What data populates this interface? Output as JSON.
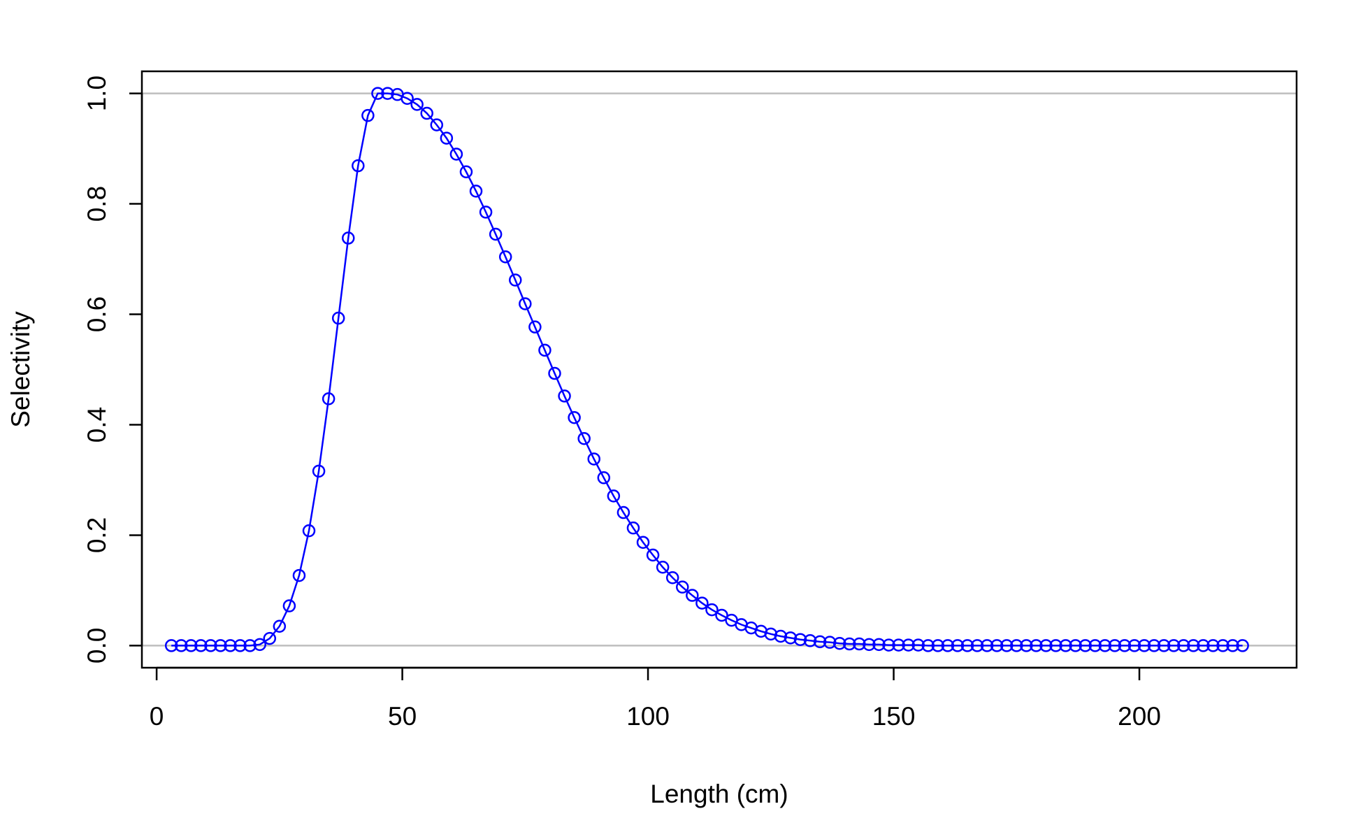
{
  "chart_data": {
    "type": "line",
    "title": "",
    "xlabel": "Length (cm)",
    "ylabel": "Selectivity",
    "xlim": [
      -3,
      232
    ],
    "ylim": [
      -0.04,
      1.04
    ],
    "x_ticks": [
      0,
      50,
      100,
      150,
      200
    ],
    "y_ticks": [
      0.0,
      0.2,
      0.4,
      0.6,
      0.8,
      1.0
    ],
    "x_tick_labels": [
      "0",
      "50",
      "100",
      "150",
      "200"
    ],
    "y_tick_labels": [
      "0.0",
      "0.2",
      "0.4",
      "0.6",
      "0.8",
      "1.0"
    ],
    "reference_lines": [
      0,
      1
    ],
    "reference_line_color": "#bebebe",
    "series_color": "#0000ff",
    "markers": "open-circle",
    "legend": "none",
    "grid": false,
    "x": [
      3,
      5,
      7,
      9,
      11,
      13,
      15,
      17,
      19,
      21,
      23,
      25,
      27,
      29,
      31,
      33,
      35,
      37,
      39,
      41,
      43,
      45,
      47,
      49,
      51,
      53,
      55,
      57,
      59,
      61,
      63,
      65,
      67,
      69,
      71,
      73,
      75,
      77,
      79,
      81,
      83,
      85,
      87,
      89,
      91,
      93,
      95,
      97,
      99,
      101,
      103,
      105,
      107,
      109,
      111,
      113,
      115,
      117,
      119,
      121,
      123,
      125,
      127,
      129,
      131,
      133,
      135,
      137,
      139,
      141,
      143,
      145,
      147,
      149,
      151,
      153,
      155,
      157,
      159,
      161,
      163,
      165,
      167,
      169,
      171,
      173,
      175,
      177,
      179,
      181,
      183,
      185,
      187,
      189,
      191,
      193,
      195,
      197,
      199,
      201,
      203,
      205,
      207,
      209,
      211,
      213,
      215,
      217,
      219,
      221
    ],
    "y": [
      0,
      0,
      0,
      0,
      0,
      0,
      0,
      0,
      0,
      0.002,
      0.013,
      0.035,
      0.072,
      0.127,
      0.208,
      0.316,
      0.447,
      0.593,
      0.738,
      0.869,
      0.96,
      1.0,
      1.0,
      0.998,
      0.991,
      0.98,
      0.964,
      0.943,
      0.919,
      0.89,
      0.858,
      0.823,
      0.785,
      0.745,
      0.704,
      0.662,
      0.619,
      0.577,
      0.535,
      0.493,
      0.452,
      0.413,
      0.375,
      0.338,
      0.304,
      0.271,
      0.241,
      0.213,
      0.187,
      0.164,
      0.142,
      0.123,
      0.106,
      0.091,
      0.077,
      0.065,
      0.055,
      0.046,
      0.038,
      0.032,
      0.026,
      0.021,
      0.017,
      0.014,
      0.011,
      0.009,
      0.007,
      0.006,
      0.004,
      0.003,
      0.003,
      0.002,
      0.002,
      0.001,
      0.001,
      0.001,
      0.001,
      0,
      0,
      0,
      0,
      0,
      0,
      0,
      0,
      0,
      0,
      0,
      0,
      0,
      0,
      0,
      0,
      0,
      0,
      0,
      0,
      0,
      0,
      0,
      0,
      0,
      0,
      0,
      0,
      0,
      0,
      0,
      0,
      0
    ]
  }
}
